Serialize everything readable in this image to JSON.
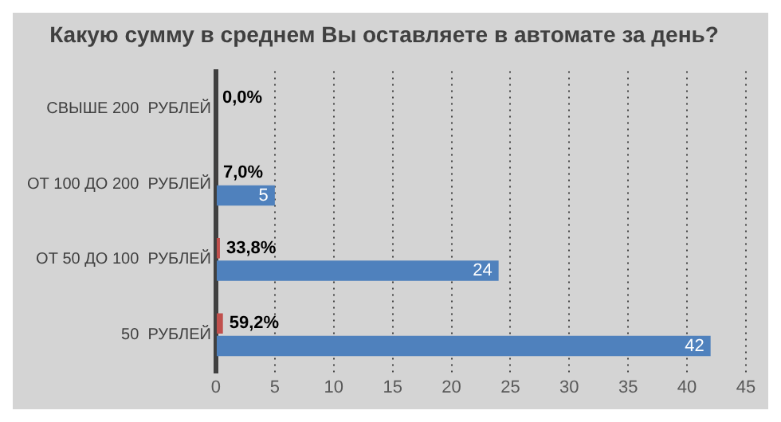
{
  "chart_data": {
    "type": "bar",
    "orientation": "horizontal",
    "title": "Какую сумму в среднем Вы оставляете в автомате за день?",
    "categories": [
      "СВЫШЕ 200  РУБЛЕЙ",
      "ОТ 100 ДО 200  РУБЛЕЙ",
      "ОТ 50 ДО 100  РУБЛЕЙ",
      "50  РУБЛЕЙ"
    ],
    "series": [
      {
        "color": "#c0504d",
        "values": [
          0,
          0.07,
          0.338,
          0.592
        ],
        "value_labels": [
          "0,0%",
          "7,0%",
          "33,8%",
          "59,2%"
        ]
      },
      {
        "color": "#4f81bd",
        "values": [
          0,
          5,
          24,
          42
        ],
        "value_labels": [
          null,
          "5",
          "24",
          "42"
        ]
      }
    ],
    "xlim": [
      0,
      45
    ],
    "xticks": [
      0,
      5,
      10,
      15,
      20,
      25,
      30,
      35,
      40,
      45
    ],
    "grid": "x",
    "legend": false
  }
}
